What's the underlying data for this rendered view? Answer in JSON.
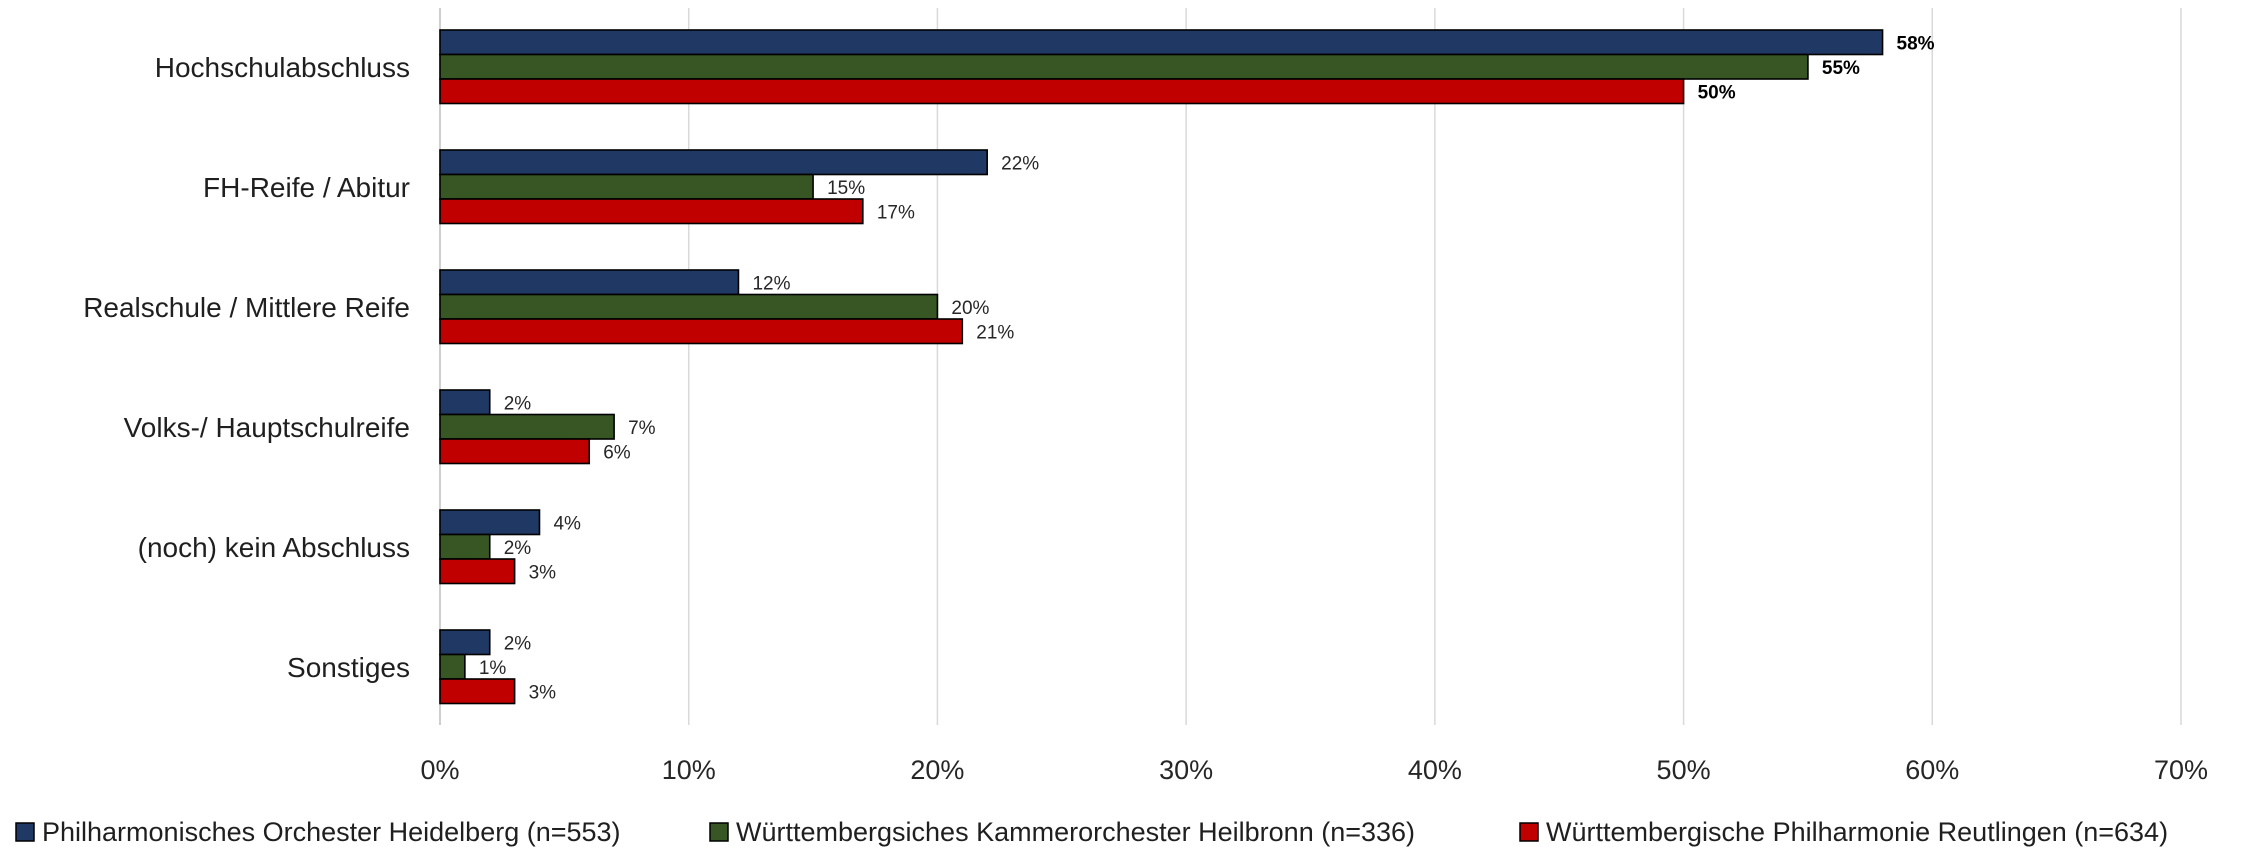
{
  "chart_data": {
    "type": "bar",
    "orientation": "horizontal",
    "categories": [
      "Hochschulabschluss",
      "FH-Reife / Abitur",
      "Realschule / Mittlere Reife",
      "Volks-/ Hauptschulreife",
      "(noch) kein Abschluss",
      "Sonstiges"
    ],
    "series": [
      {
        "name": "Philharmonisches Orchester Heidelberg (n=553)",
        "color": "#1f3864",
        "values": [
          58,
          22,
          12,
          2,
          4,
          2
        ]
      },
      {
        "name": "Württembergsiches Kammerorchester Heilbronn (n=336)",
        "color": "#375623",
        "values": [
          55,
          15,
          20,
          7,
          2,
          1
        ]
      },
      {
        "name": "Württembergische Philharmonie Reutlingen (n=634)",
        "color": "#c00000",
        "values": [
          50,
          17,
          21,
          6,
          3,
          3
        ]
      }
    ],
    "data_labels": [
      [
        "58%",
        "22%",
        "12%",
        "2%",
        "4%",
        "2%"
      ],
      [
        "55%",
        "15%",
        "20%",
        "7%",
        "2%",
        "1%"
      ],
      [
        "50%",
        "17%",
        "21%",
        "6%",
        "3%",
        "3%"
      ]
    ],
    "bold_label_category": "Hochschulabschluss",
    "xlim": [
      0,
      70
    ],
    "xticks": [
      0,
      10,
      20,
      30,
      40,
      50,
      60,
      70
    ],
    "xtick_labels": [
      "0%",
      "10%",
      "20%",
      "30%",
      "40%",
      "50%",
      "60%",
      "70%"
    ],
    "grid": true,
    "legend_position": "bottom",
    "title": "",
    "xlabel": "",
    "ylabel": ""
  }
}
